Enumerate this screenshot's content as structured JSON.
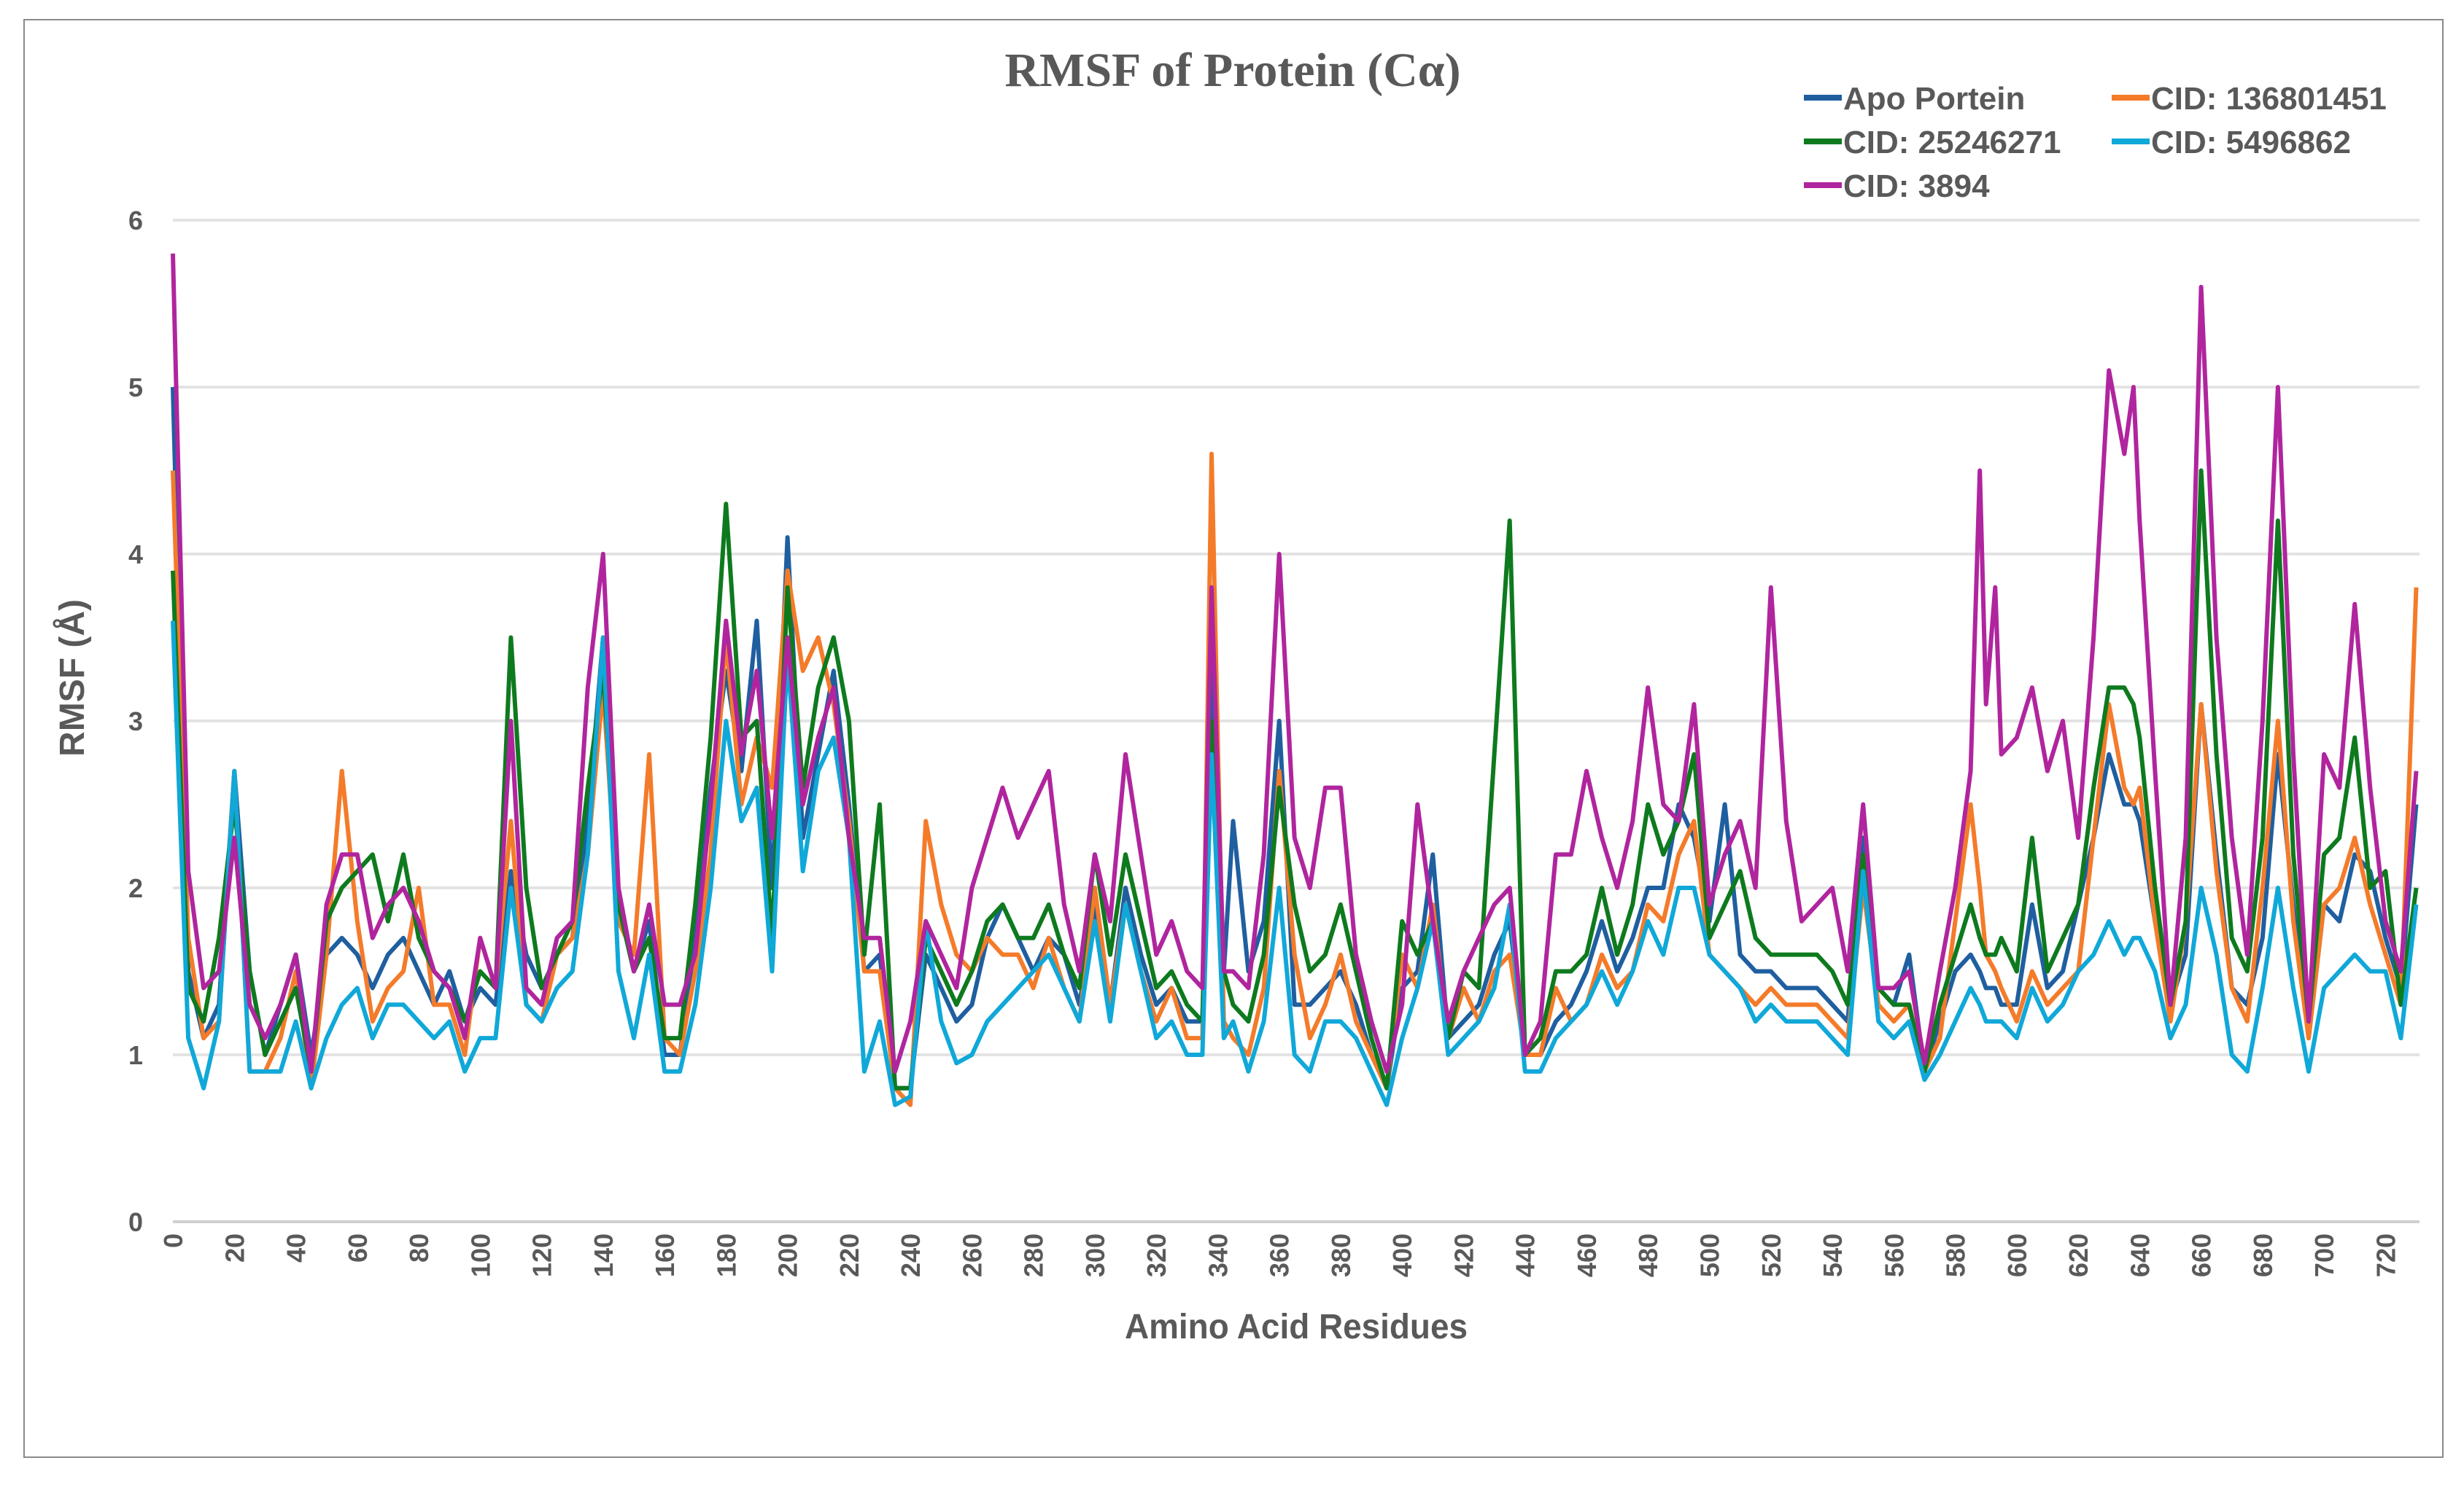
{
  "chart_data": {
    "type": "line",
    "title": "RMSF of Protein (Cα)",
    "xlabel": "Amino Acid Residues",
    "ylabel": "RMSF (Å)",
    "xlim": [
      0,
      734
    ],
    "ylim": [
      0,
      6
    ],
    "grid": true,
    "legend_position": "top-right",
    "yticks": [
      0,
      1,
      2,
      3,
      4,
      5,
      6
    ],
    "xticks": [
      0,
      20,
      40,
      60,
      80,
      100,
      120,
      140,
      160,
      180,
      200,
      220,
      240,
      260,
      280,
      300,
      320,
      340,
      360,
      380,
      400,
      420,
      440,
      460,
      480,
      500,
      520,
      540,
      560,
      580,
      600,
      620,
      640,
      660,
      680,
      700,
      720
    ],
    "x": [
      0,
      5,
      10,
      15,
      20,
      25,
      30,
      35,
      40,
      45,
      50,
      55,
      60,
      65,
      70,
      75,
      80,
      85,
      90,
      95,
      100,
      105,
      110,
      115,
      120,
      125,
      130,
      135,
      140,
      145,
      150,
      155,
      160,
      165,
      170,
      175,
      180,
      185,
      190,
      195,
      200,
      205,
      210,
      215,
      220,
      225,
      230,
      235,
      240,
      245,
      250,
      255,
      260,
      265,
      270,
      275,
      280,
      285,
      290,
      295,
      300,
      305,
      310,
      315,
      320,
      325,
      330,
      335,
      338,
      342,
      345,
      350,
      355,
      360,
      365,
      370,
      375,
      380,
      385,
      390,
      395,
      400,
      405,
      410,
      415,
      420,
      425,
      430,
      435,
      440,
      445,
      450,
      455,
      460,
      465,
      470,
      475,
      480,
      485,
      490,
      495,
      500,
      505,
      510,
      515,
      520,
      525,
      530,
      535,
      540,
      545,
      550,
      555,
      560,
      565,
      570,
      575,
      580,
      585,
      588,
      590,
      593,
      595,
      600,
      605,
      610,
      615,
      620,
      625,
      630,
      635,
      638,
      640,
      645,
      650,
      655,
      660,
      665,
      670,
      675,
      680,
      685,
      690,
      695,
      700,
      705,
      710,
      715,
      720,
      725,
      730
    ],
    "series": [
      {
        "name": "Apo Portein",
        "color": "#1F5FA0",
        "values": [
          5.0,
          1.5,
          1.1,
          1.3,
          2.7,
          1.5,
          1.0,
          1.3,
          1.6,
          1.0,
          1.6,
          1.7,
          1.6,
          1.4,
          1.6,
          1.7,
          1.5,
          1.3,
          1.5,
          1.2,
          1.4,
          1.3,
          2.1,
          1.6,
          1.4,
          1.6,
          1.7,
          2.4,
          3.5,
          1.9,
          1.5,
          1.8,
          1.0,
          1.0,
          1.7,
          2.6,
          3.3,
          2.7,
          3.6,
          2.0,
          4.1,
          2.3,
          2.8,
          3.3,
          2.5,
          1.5,
          1.6,
          0.8,
          0.8,
          1.6,
          1.4,
          1.2,
          1.3,
          1.7,
          1.9,
          1.7,
          1.5,
          1.7,
          1.6,
          1.3,
          1.9,
          1.3,
          2.0,
          1.6,
          1.3,
          1.4,
          1.2,
          1.2,
          3.3,
          1.5,
          2.4,
          1.5,
          1.8,
          3.0,
          1.3,
          1.3,
          1.4,
          1.5,
          1.3,
          1.0,
          0.8,
          1.4,
          1.5,
          2.2,
          1.1,
          1.2,
          1.3,
          1.6,
          1.8,
          1.0,
          1.0,
          1.2,
          1.3,
          1.5,
          1.8,
          1.5,
          1.7,
          2.0,
          2.0,
          2.5,
          2.3,
          1.8,
          2.5,
          1.6,
          1.5,
          1.5,
          1.4,
          1.4,
          1.4,
          1.3,
          1.2,
          2.3,
          1.4,
          1.3,
          1.6,
          0.9,
          1.2,
          1.5,
          1.6,
          1.5,
          1.4,
          1.4,
          1.3,
          1.3,
          1.9,
          1.4,
          1.5,
          1.9,
          2.3,
          2.8,
          2.5,
          2.5,
          2.4,
          1.8,
          1.3,
          1.6,
          3.1,
          2.2,
          1.4,
          1.3,
          1.7,
          2.8,
          1.9,
          1.1,
          1.9,
          1.8,
          2.2,
          2.1,
          1.7,
          1.4,
          2.5
        ]
      },
      {
        "name": "CID: 136801451",
        "color": "#F47B2A",
        "values": [
          4.5,
          1.7,
          1.1,
          1.2,
          2.7,
          0.9,
          0.9,
          1.1,
          1.5,
          0.8,
          1.6,
          2.7,
          1.8,
          1.2,
          1.4,
          1.5,
          2.0,
          1.3,
          1.3,
          1.0,
          1.7,
          1.4,
          2.4,
          1.3,
          1.2,
          1.6,
          1.7,
          2.2,
          3.2,
          1.8,
          1.6,
          2.8,
          1.1,
          1.0,
          1.5,
          2.2,
          3.5,
          2.5,
          2.9,
          2.6,
          3.9,
          3.3,
          3.5,
          3.1,
          2.4,
          1.5,
          1.5,
          0.8,
          0.7,
          2.4,
          1.9,
          1.6,
          1.5,
          1.7,
          1.6,
          1.6,
          1.4,
          1.7,
          1.4,
          1.2,
          2.0,
          1.3,
          1.9,
          1.5,
          1.2,
          1.4,
          1.1,
          1.1,
          4.6,
          1.2,
          1.1,
          1.0,
          1.4,
          2.7,
          1.6,
          1.1,
          1.3,
          1.6,
          1.2,
          1.0,
          0.8,
          1.6,
          1.4,
          1.9,
          1.1,
          1.4,
          1.2,
          1.5,
          1.6,
          1.0,
          1.0,
          1.4,
          1.2,
          1.3,
          1.6,
          1.4,
          1.5,
          1.9,
          1.8,
          2.2,
          2.4,
          1.6,
          1.5,
          1.4,
          1.3,
          1.4,
          1.3,
          1.3,
          1.3,
          1.2,
          1.1,
          2.0,
          1.3,
          1.2,
          1.3,
          0.9,
          1.1,
          1.8,
          2.5,
          2.0,
          1.6,
          1.5,
          1.4,
          1.2,
          1.5,
          1.3,
          1.4,
          1.5,
          2.3,
          3.1,
          2.6,
          2.5,
          2.6,
          1.8,
          1.2,
          1.8,
          3.1,
          2.1,
          1.4,
          1.2,
          2.0,
          3.0,
          1.8,
          1.1,
          1.9,
          2.0,
          2.3,
          1.9,
          1.6,
          1.3,
          3.8
        ]
      },
      {
        "name": "CID: 25246271",
        "color": "#0E7A1E",
        "values": [
          3.9,
          1.4,
          1.2,
          1.7,
          2.5,
          1.5,
          1.0,
          1.2,
          1.4,
          0.9,
          1.8,
          2.0,
          2.1,
          2.2,
          1.8,
          2.2,
          1.7,
          1.5,
          1.4,
          1.2,
          1.5,
          1.4,
          3.5,
          2.0,
          1.4,
          1.6,
          1.8,
          2.6,
          3.3,
          1.9,
          1.5,
          1.7,
          1.1,
          1.1,
          1.9,
          2.9,
          4.3,
          2.9,
          3.0,
          1.7,
          3.8,
          2.6,
          3.2,
          3.5,
          3.0,
          1.6,
          2.5,
          0.8,
          0.8,
          1.7,
          1.5,
          1.3,
          1.5,
          1.8,
          1.9,
          1.7,
          1.7,
          1.9,
          1.6,
          1.4,
          2.2,
          1.6,
          2.2,
          1.8,
          1.4,
          1.5,
          1.3,
          1.2,
          3.0,
          1.5,
          1.3,
          1.2,
          1.6,
          2.6,
          1.9,
          1.5,
          1.6,
          1.9,
          1.5,
          1.1,
          0.8,
          1.8,
          1.6,
          1.8,
          1.1,
          1.5,
          1.4,
          2.8,
          4.2,
          1.0,
          1.1,
          1.5,
          1.5,
          1.6,
          2.0,
          1.6,
          1.9,
          2.5,
          2.2,
          2.4,
          2.8,
          1.7,
          1.9,
          2.1,
          1.7,
          1.6,
          1.6,
          1.6,
          1.6,
          1.5,
          1.3,
          2.2,
          1.4,
          1.3,
          1.3,
          0.9,
          1.3,
          1.6,
          1.9,
          1.7,
          1.6,
          1.6,
          1.7,
          1.5,
          2.3,
          1.5,
          1.7,
          1.9,
          2.6,
          3.2,
          3.2,
          3.1,
          2.9,
          2.0,
          1.3,
          1.8,
          4.5,
          2.8,
          1.7,
          1.5,
          2.3,
          4.2,
          2.2,
          1.2,
          2.2,
          2.3,
          2.9,
          2.0,
          2.1,
          1.3,
          2.0
        ]
      },
      {
        "name": "CID: 5496862",
        "color": "#10A8D8",
        "values": [
          3.6,
          1.1,
          0.8,
          1.2,
          2.7,
          0.9,
          0.9,
          0.9,
          1.2,
          0.8,
          1.1,
          1.3,
          1.4,
          1.1,
          1.3,
          1.3,
          1.2,
          1.1,
          1.2,
          0.9,
          1.1,
          1.1,
          2.0,
          1.3,
          1.2,
          1.4,
          1.5,
          2.2,
          3.5,
          1.5,
          1.1,
          1.6,
          0.9,
          0.9,
          1.3,
          2.0,
          3.0,
          2.4,
          2.6,
          1.5,
          3.4,
          2.1,
          2.7,
          2.9,
          2.3,
          0.9,
          1.2,
          0.7,
          0.75,
          1.8,
          1.2,
          0.95,
          1.0,
          1.2,
          1.3,
          1.4,
          1.5,
          1.6,
          1.4,
          1.2,
          1.8,
          1.2,
          1.9,
          1.5,
          1.1,
          1.2,
          1.0,
          1.0,
          2.8,
          1.1,
          1.2,
          0.9,
          1.2,
          2.0,
          1.0,
          0.9,
          1.2,
          1.2,
          1.1,
          0.9,
          0.7,
          1.1,
          1.4,
          1.8,
          1.0,
          1.1,
          1.2,
          1.4,
          1.9,
          0.9,
          0.9,
          1.1,
          1.2,
          1.3,
          1.5,
          1.3,
          1.5,
          1.8,
          1.6,
          2.0,
          2.0,
          1.6,
          1.5,
          1.4,
          1.2,
          1.3,
          1.2,
          1.2,
          1.2,
          1.1,
          1.0,
          2.1,
          1.2,
          1.1,
          1.2,
          0.85,
          1.0,
          1.2,
          1.4,
          1.3,
          1.2,
          1.2,
          1.2,
          1.1,
          1.4,
          1.2,
          1.3,
          1.5,
          1.6,
          1.8,
          1.6,
          1.7,
          1.7,
          1.5,
          1.1,
          1.3,
          2.0,
          1.6,
          1.0,
          0.9,
          1.4,
          2.0,
          1.4,
          0.9,
          1.4,
          1.5,
          1.6,
          1.5,
          1.5,
          1.1,
          1.9
        ]
      },
      {
        "name": "CID: 3894",
        "color": "#B0259E",
        "values": [
          5.8,
          2.1,
          1.4,
          1.5,
          2.3,
          1.3,
          1.1,
          1.3,
          1.6,
          0.9,
          1.9,
          2.2,
          2.2,
          1.7,
          1.9,
          2.0,
          1.8,
          1.5,
          1.4,
          1.1,
          1.7,
          1.4,
          3.0,
          1.4,
          1.3,
          1.7,
          1.8,
          3.2,
          4.0,
          2.0,
          1.5,
          1.9,
          1.3,
          1.3,
          1.6,
          2.5,
          3.6,
          2.8,
          3.3,
          2.3,
          3.5,
          2.5,
          2.9,
          3.2,
          2.3,
          1.7,
          1.7,
          0.9,
          1.2,
          1.8,
          1.6,
          1.4,
          2.0,
          2.3,
          2.6,
          2.3,
          2.5,
          2.7,
          1.9,
          1.5,
          2.2,
          1.8,
          2.8,
          2.2,
          1.6,
          1.8,
          1.5,
          1.4,
          3.8,
          1.5,
          1.5,
          1.4,
          2.2,
          4.0,
          2.3,
          2.0,
          2.6,
          2.6,
          1.6,
          1.2,
          0.9,
          1.3,
          2.5,
          1.8,
          1.2,
          1.5,
          1.7,
          1.9,
          2.0,
          1.0,
          1.2,
          2.2,
          2.2,
          2.7,
          2.3,
          2.0,
          2.4,
          3.2,
          2.5,
          2.4,
          3.1,
          1.9,
          2.2,
          2.4,
          2.0,
          3.8,
          2.4,
          1.8,
          1.9,
          2.0,
          1.5,
          2.5,
          1.4,
          1.4,
          1.5,
          0.95,
          1.5,
          2.0,
          2.7,
          4.5,
          3.1,
          3.8,
          2.8,
          2.9,
          3.2,
          2.7,
          3.0,
          2.3,
          3.5,
          5.1,
          4.6,
          5.0,
          4.2,
          2.7,
          1.3,
          2.3,
          5.6,
          3.5,
          2.3,
          1.6,
          3.0,
          5.0,
          2.8,
          1.2,
          2.8,
          2.6,
          3.7,
          2.6,
          1.8,
          1.5,
          2.7
        ]
      }
    ]
  }
}
